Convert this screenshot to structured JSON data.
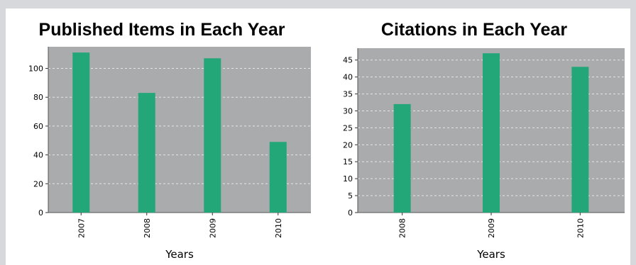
{
  "chart_data": [
    {
      "type": "bar",
      "title": "Published Items in Each Year",
      "xlabel": "Years",
      "ylabel": "",
      "categories": [
        "2007",
        "2008",
        "2009",
        "2010"
      ],
      "values": [
        111,
        83,
        107,
        49
      ],
      "ylim": [
        0,
        115
      ],
      "yticks": [
        0,
        20,
        40,
        60,
        80,
        100
      ],
      "grid": true,
      "bar_color": "#23a678",
      "plot_bg": "#a9abad"
    },
    {
      "type": "bar",
      "title": "Citations in Each Year",
      "xlabel": "Years",
      "ylabel": "",
      "categories": [
        "2008",
        "2009",
        "2010"
      ],
      "values": [
        32,
        47,
        43
      ],
      "ylim": [
        0,
        48.5
      ],
      "yticks": [
        0,
        5,
        10,
        15,
        20,
        25,
        30,
        35,
        40,
        45
      ],
      "grid": true,
      "bar_color": "#23a678",
      "plot_bg": "#a9abad"
    }
  ]
}
